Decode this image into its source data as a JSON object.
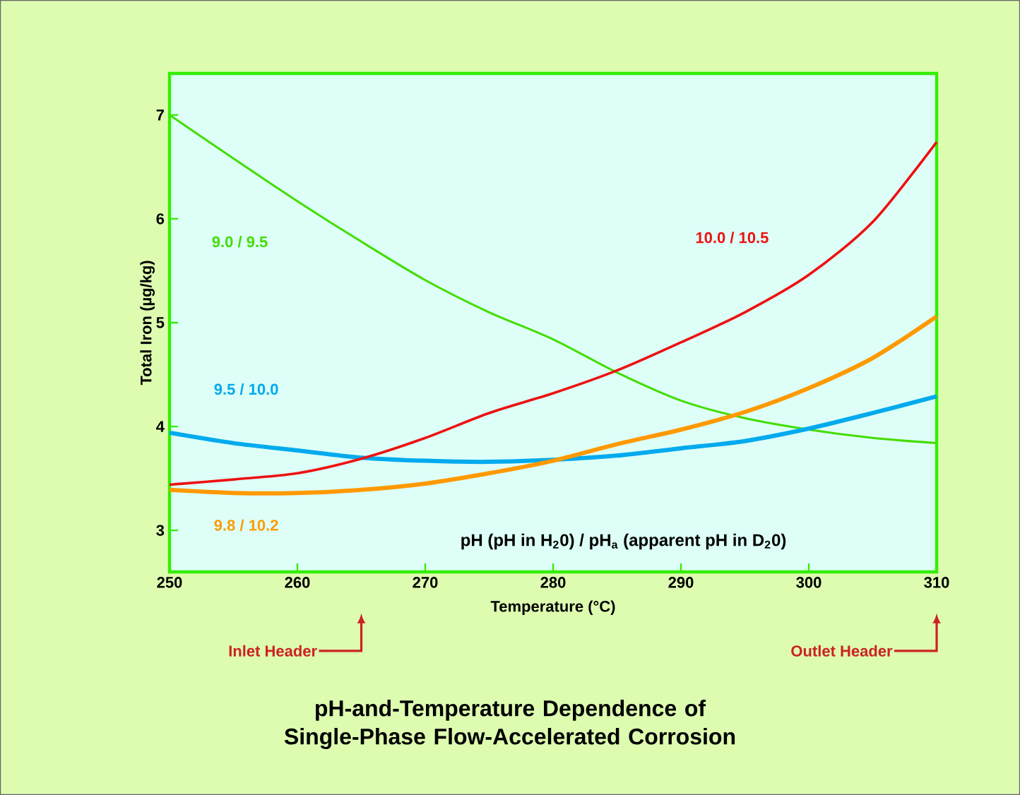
{
  "chart_data": {
    "type": "line",
    "title": "pH-and-Temperature Dependence of Single-Phase Flow-Accelerated Corrosion",
    "xlabel": "Temperature (°C)",
    "ylabel": "Total Iron (µg/kg)",
    "x": [
      250,
      255,
      260,
      265,
      270,
      275,
      280,
      285,
      290,
      295,
      300,
      305,
      310
    ],
    "series": [
      {
        "name": "9.0 / 9.5",
        "color": "#44dd00",
        "values": [
          7.0,
          6.58,
          6.17,
          5.78,
          5.41,
          5.1,
          4.84,
          4.52,
          4.25,
          4.08,
          3.97,
          3.89,
          3.84
        ]
      },
      {
        "name": "9.5 / 10.0",
        "color": "#00aaee",
        "values": [
          3.94,
          3.84,
          3.77,
          3.7,
          3.67,
          3.66,
          3.68,
          3.72,
          3.79,
          3.86,
          3.98,
          4.13,
          4.29
        ]
      },
      {
        "name": "9.8 / 10.2",
        "color": "#ff9900",
        "values": [
          3.39,
          3.36,
          3.36,
          3.39,
          3.45,
          3.55,
          3.67,
          3.83,
          3.97,
          4.14,
          4.37,
          4.66,
          5.06
        ]
      },
      {
        "name": "10.0 / 10.5",
        "color": "#ee1111",
        "values": [
          3.44,
          3.49,
          3.55,
          3.69,
          3.89,
          4.13,
          4.32,
          4.54,
          4.81,
          5.1,
          5.46,
          5.97,
          6.74
        ]
      }
    ],
    "xlim": [
      250,
      310
    ],
    "xticks": [
      250,
      260,
      270,
      280,
      290,
      300,
      310
    ],
    "ylim": [
      2.6,
      7.4
    ],
    "yticks": [
      3,
      4,
      5,
      6,
      7
    ],
    "grid": false,
    "marker": "none",
    "line_style": "solid",
    "annotations": [
      "**pH** (pH in H$_{2}$0) / **pH$_{a}$** (apparent pH in D$_{2}$0)",
      "Inlet Header",
      "Outlet Header"
    ]
  }
}
